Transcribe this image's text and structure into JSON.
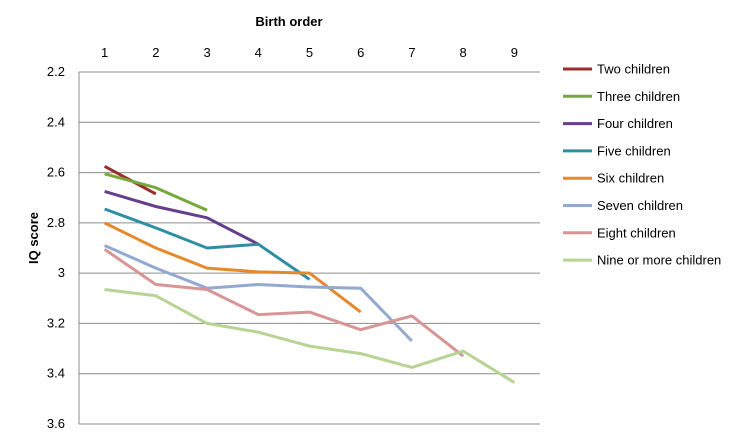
{
  "chart_data": {
    "type": "line",
    "xlabel": "Birth order",
    "ylabel": "IQ score",
    "x_ticks": [
      1,
      2,
      3,
      4,
      5,
      6,
      7,
      8,
      9
    ],
    "y_ticks": [
      "2.2",
      "2.4",
      "2.6",
      "2.8",
      "3",
      "3.2",
      "3.4",
      "3.6"
    ],
    "ylim": [
      2.2,
      3.6
    ],
    "y_inverted": true,
    "x_axis_position": "top",
    "grid": "horizontal",
    "legend_position": "right",
    "series": [
      {
        "name": "Two children",
        "color": "#9b2d2a",
        "x": [
          1,
          2
        ],
        "values": [
          2.575,
          2.685
        ]
      },
      {
        "name": "Three children",
        "color": "#77a83b",
        "x": [
          1,
          2,
          3
        ],
        "values": [
          2.605,
          2.66,
          2.75
        ]
      },
      {
        "name": "Four children",
        "color": "#653f8a",
        "x": [
          1,
          2,
          3,
          4
        ],
        "values": [
          2.675,
          2.735,
          2.78,
          2.885
        ]
      },
      {
        "name": "Five children",
        "color": "#2e8ea3",
        "x": [
          1,
          2,
          3,
          4,
          5
        ],
        "values": [
          2.745,
          2.82,
          2.9,
          2.885,
          3.025
        ]
      },
      {
        "name": "Six children",
        "color": "#e48a2b",
        "x": [
          1,
          2,
          3,
          4,
          5,
          6
        ],
        "values": [
          2.8,
          2.9,
          2.98,
          2.995,
          3.0,
          3.155
        ]
      },
      {
        "name": "Seven children",
        "color": "#93a9d2",
        "x": [
          1,
          2,
          3,
          4,
          5,
          6,
          7
        ],
        "values": [
          2.89,
          2.98,
          3.06,
          3.045,
          3.055,
          3.06,
          3.27
        ]
      },
      {
        "name": "Eight children",
        "color": "#d89595",
        "x": [
          1,
          2,
          3,
          4,
          5,
          6,
          7,
          8
        ],
        "values": [
          2.905,
          3.045,
          3.065,
          3.165,
          3.155,
          3.225,
          3.17,
          3.33
        ]
      },
      {
        "name": "Nine or more children",
        "color": "#b7d494",
        "x": [
          1,
          2,
          3,
          4,
          5,
          6,
          7,
          8,
          9
        ],
        "values": [
          3.065,
          3.09,
          3.2,
          3.235,
          3.29,
          3.32,
          3.375,
          3.31,
          3.435
        ]
      }
    ]
  }
}
